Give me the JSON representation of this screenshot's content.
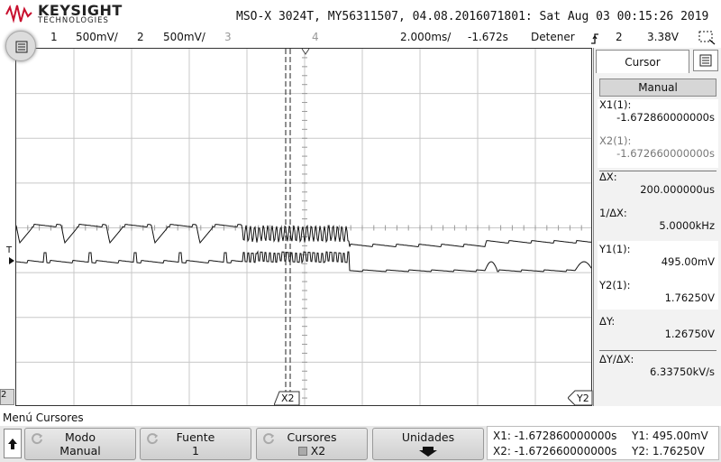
{
  "header": {
    "brand": "KEYSIGHT",
    "brand_sub": "TECHNOLOGIES",
    "device_info": "MSO-X 3024T, MY56311507, 04.08.2016071801: Sat Aug 03 00:15:26 2019"
  },
  "status_bar": {
    "ch1_num": "1",
    "ch1_scale": "500mV/",
    "ch2_num": "2",
    "ch2_scale": "500mV/",
    "ch3_num": "3",
    "ch4_num": "4",
    "timebase": "2.000ms/",
    "delay": "-1.672s",
    "run_state": "Detener",
    "trigger_source": "2",
    "trigger_level": "3.38V"
  },
  "markers": {
    "ch2_marker": "2",
    "trigger_marker": "T",
    "x2_label": "X2",
    "y2_label": "Y2"
  },
  "side_panel": {
    "tab": "Cursor",
    "mode_button": "Manual",
    "x1_label": "X1(1):",
    "x1_value": "-1.672860000000s",
    "x2_label": "X2(1):",
    "x2_value": "-1.672660000000s",
    "dx_label": "ΔX:",
    "dx_value": "200.000000us",
    "inv_dx_label": "1/ΔX:",
    "inv_dx_value": "5.0000kHz",
    "y1_label": "Y1(1):",
    "y1_value": "495.00mV",
    "y2_label": "Y2(1):",
    "y2_value": "1.76250V",
    "dy_label": "ΔY:",
    "dy_value": "1.26750V",
    "dydx_label": "ΔY/ΔX:",
    "dydx_value": "6.33750kV/s"
  },
  "bottom_menu": {
    "title": "Menú Cursores",
    "softkeys": [
      {
        "line1": "Modo",
        "line2": "Manual"
      },
      {
        "line1": "Fuente",
        "line2": "1"
      },
      {
        "line1": "Cursores",
        "line2": "X2"
      },
      {
        "line1": "Unidades",
        "line2": ""
      }
    ],
    "readout": {
      "x1": "X1: -1.672860000000s",
      "x2": "X2: -1.672660000000s",
      "y1": "Y1: 495.00mV",
      "y2": "Y2: 1.76250V"
    }
  },
  "colors": {
    "trace": "#111111",
    "grid": "#c8c8c8",
    "panel_bg": "#f2f2f2",
    "softkey_bg": "#d4d4d4"
  },
  "icons": [
    "keysight-logo-icon",
    "menu-icon",
    "trigger-edge-icon",
    "zoom-box-icon",
    "panel-menu-icon",
    "up-arrow-icon",
    "rotate-knob-icon",
    "down-arrow-icon"
  ]
}
